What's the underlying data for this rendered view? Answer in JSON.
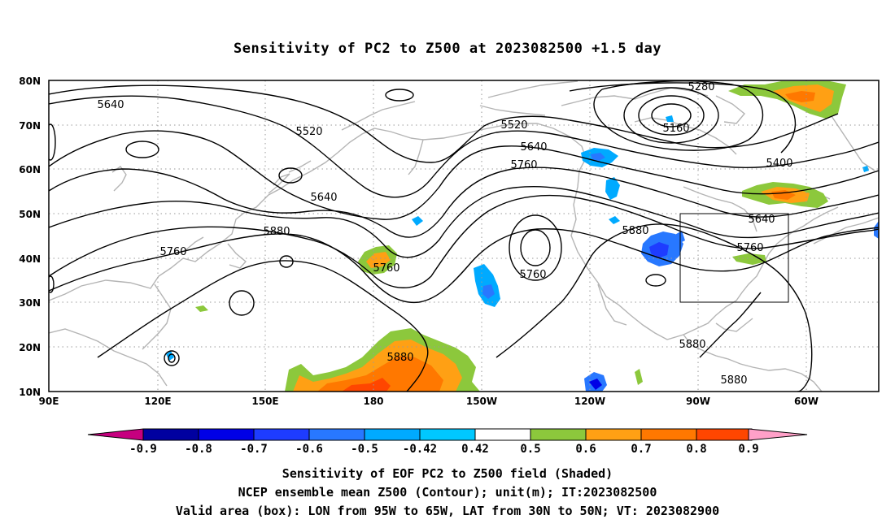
{
  "title": "Sensitivity of PC2 to Z500 at 2023082500 +1.5 day",
  "map": {
    "lat_labels": [
      "80N",
      "70N",
      "60N",
      "50N",
      "40N",
      "30N",
      "20N",
      "10N"
    ],
    "lon_labels": [
      "90E",
      "120E",
      "150E",
      "180",
      "150W",
      "120W",
      "90W",
      "60W"
    ],
    "extent": {
      "lon_west": "90E",
      "lon_east": "~45W",
      "lat_south": "10N",
      "lat_north": "80N"
    },
    "contour_labels": [
      "5640",
      "5520",
      "5640",
      "5760",
      "5880",
      "5760",
      "5880",
      "5520",
      "5640",
      "5760",
      "5760",
      "5880",
      "5280",
      "5160",
      "5400",
      "5640",
      "5760",
      "5880",
      "5880"
    ],
    "valid_box": {
      "lon": "95W to 65W",
      "lat": "30N to 50N"
    },
    "colors": {
      "contour": "#000000",
      "coast": "#b4b4b4",
      "grid": "#9a9a9a"
    }
  },
  "colorbar": {
    "labels": [
      "-0.9",
      "-0.8",
      "-0.7",
      "-0.6",
      "-0.5",
      "-0.42",
      "0.42",
      "0.5",
      "0.6",
      "0.7",
      "0.8",
      "0.9"
    ],
    "colors": [
      "#c6007f",
      "#0000a0",
      "#0000e6",
      "#1e3cff",
      "#2878ff",
      "#00aaff",
      "#00c8ff",
      "#ffffff",
      "#8cc83c",
      "#ffa014",
      "#ff7800",
      "#ff4600",
      "#ff0000",
      "#ffa0c8"
    ]
  },
  "captions": {
    "line1": "Sensitivity of EOF PC2 to Z500 field (Shaded)",
    "line2": "NCEP ensemble mean Z500 (Contour); unit(m); IT:2023082500",
    "line3": "Valid area (box): LON from 95W to 65W, LAT from 30N to 50N; VT: 2023082900"
  }
}
